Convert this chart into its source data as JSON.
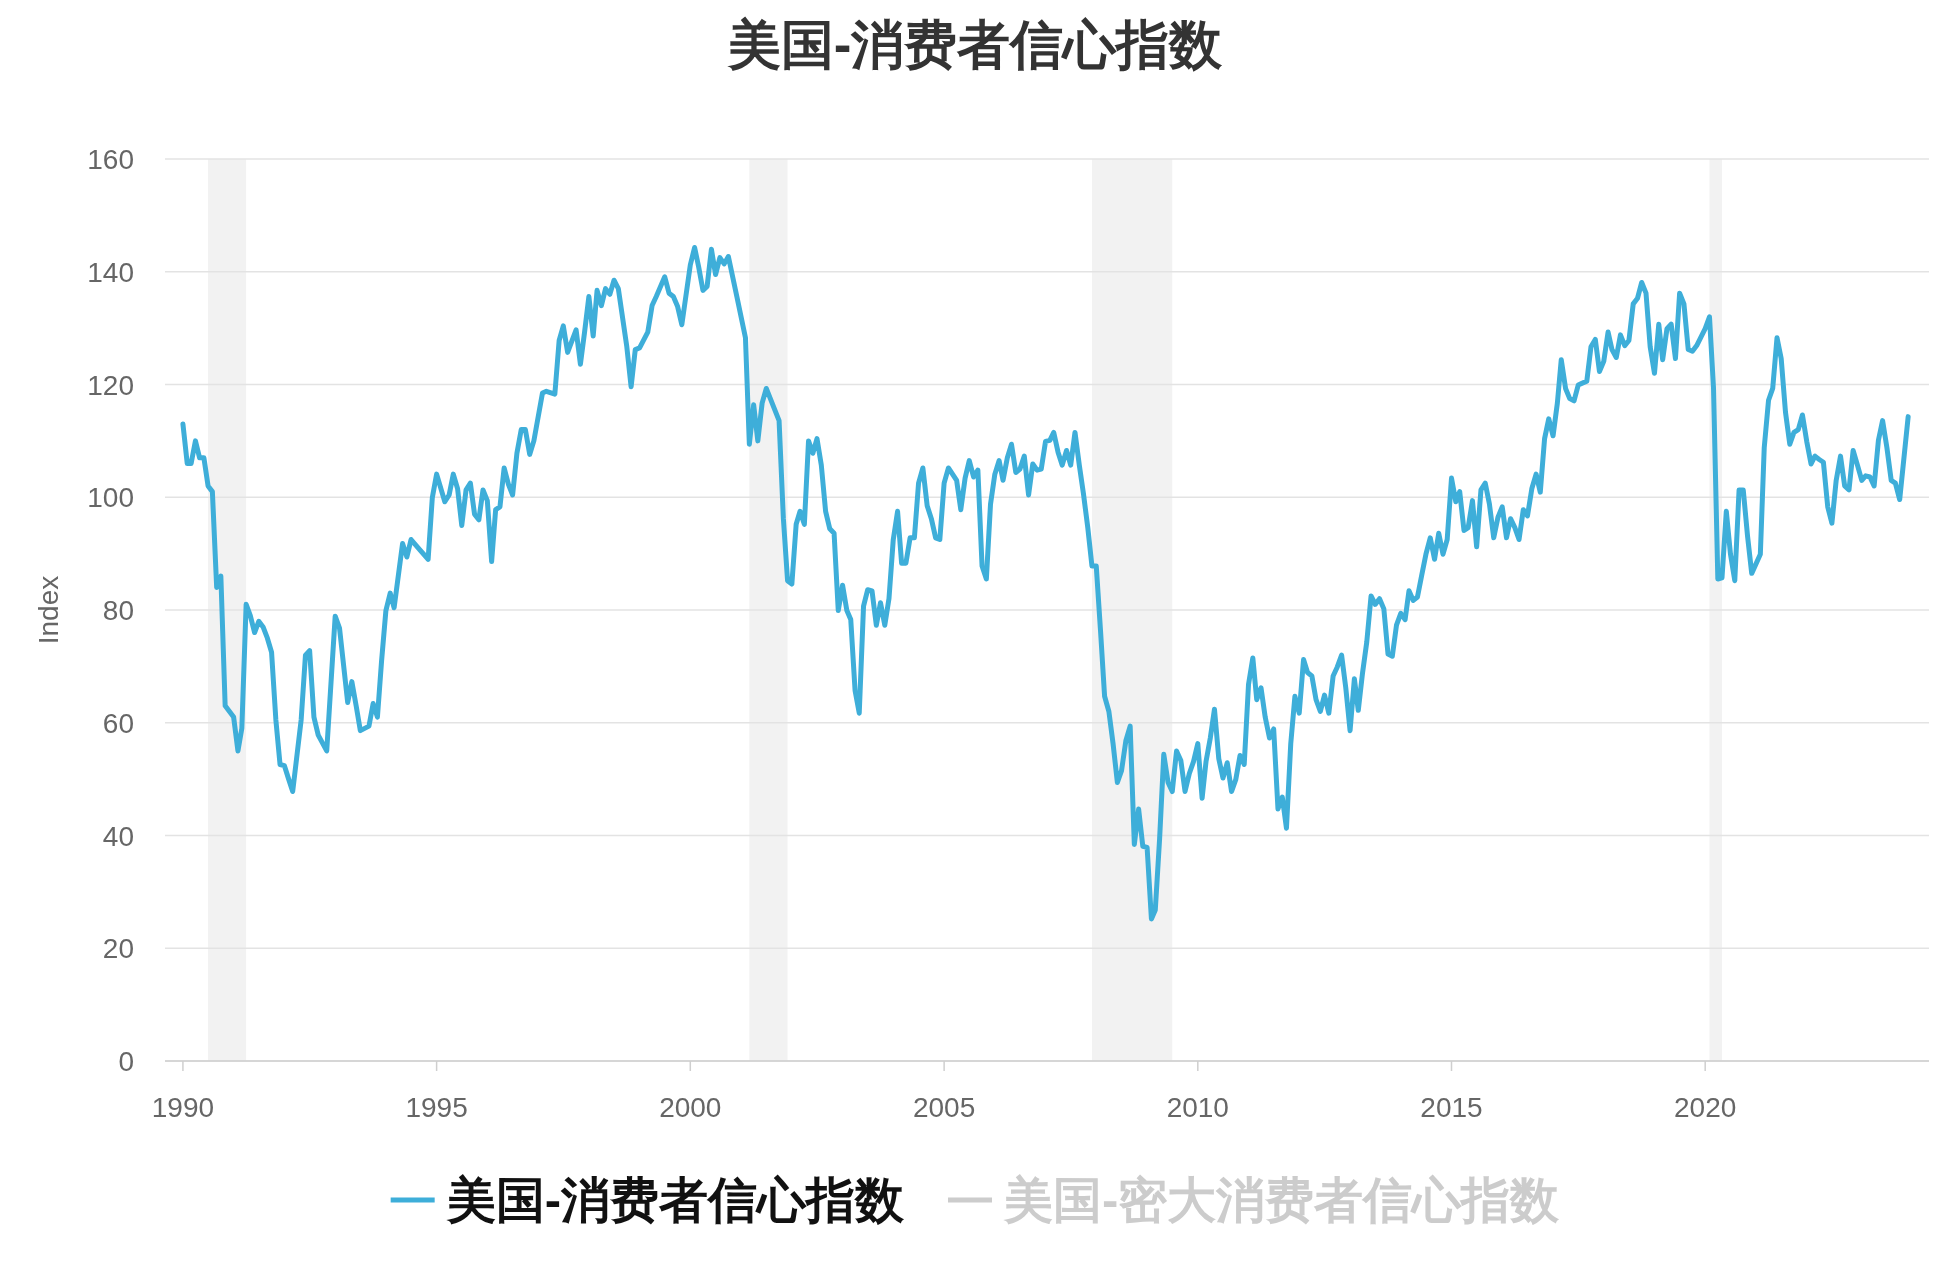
{
  "chart_data": {
    "type": "line",
    "title": "美国-消费者信心指数",
    "ylabel": "Index",
    "x": [
      "1990-01",
      "1990-02",
      "1990-03",
      "1990-04",
      "1990-05",
      "1990-06",
      "1990-07",
      "1990-08",
      "1990-09",
      "1990-10",
      "1990-11",
      "1991-01",
      "1991-02",
      "1991-03",
      "1991-04",
      "1991-05",
      "1991-06",
      "1991-07",
      "1991-08",
      "1991-09",
      "1991-10",
      "1991-11",
      "1991-12",
      "1992-01",
      "1992-02",
      "1992-03",
      "1992-05",
      "1992-06",
      "1992-07",
      "1992-08",
      "1992-09",
      "1992-11",
      "1993-01",
      "1993-02",
      "1993-04",
      "1993-05",
      "1993-06",
      "1993-07",
      "1993-09",
      "1993-10",
      "1993-11",
      "1993-12",
      "1994-01",
      "1994-02",
      "1994-03",
      "1994-04",
      "1994-05",
      "1994-06",
      "1994-07",
      "1994-09",
      "1994-11",
      "1994-12",
      "1995-01",
      "1995-03",
      "1995-04",
      "1995-05",
      "1995-06",
      "1995-07",
      "1995-08",
      "1995-09",
      "1995-10",
      "1995-11",
      "1995-12",
      "1996-01",
      "1996-02",
      "1996-03",
      "1996-04",
      "1996-05",
      "1996-06",
      "1996-07",
      "1996-08",
      "1996-09",
      "1996-10",
      "1996-11",
      "1996-12",
      "1997-02",
      "1997-03",
      "1997-05",
      "1997-06",
      "1997-07",
      "1997-08",
      "1997-10",
      "1997-11",
      "1997-12",
      "1998-01",
      "1998-02",
      "1998-03",
      "1998-04",
      "1998-05",
      "1998-06",
      "1998-07",
      "1998-08",
      "1998-10",
      "1998-11",
      "1998-12",
      "1999-01",
      "1999-03",
      "1999-04",
      "1999-05",
      "1999-07",
      "1999-08",
      "1999-09",
      "1999-10",
      "1999-11",
      "2000-01",
      "2000-02",
      "2000-03",
      "2000-04",
      "2000-05",
      "2000-06",
      "2000-07",
      "2000-08",
      "2000-09",
      "2000-10",
      "2000-12",
      "2001-02",
      "2001-03",
      "2001-04",
      "2001-05",
      "2001-06",
      "2001-07",
      "2001-10",
      "2001-11",
      "2001-12",
      "2002-01",
      "2002-02",
      "2002-03",
      "2002-04",
      "2002-05",
      "2002-06",
      "2002-07",
      "2002-08",
      "2002-09",
      "2002-10",
      "2002-11",
      "2002-12",
      "2003-01",
      "2003-02",
      "2003-03",
      "2003-04",
      "2003-05",
      "2003-06",
      "2003-07",
      "2003-08",
      "2003-09",
      "2003-10",
      "2003-11",
      "2003-12",
      "2004-01",
      "2004-02",
      "2004-03",
      "2004-04",
      "2004-05",
      "2004-06",
      "2004-07",
      "2004-08",
      "2004-09",
      "2004-10",
      "2004-11",
      "2004-12",
      "2005-01",
      "2005-02",
      "2005-04",
      "2005-05",
      "2005-06",
      "2005-07",
      "2005-08",
      "2005-09",
      "2005-10",
      "2005-11",
      "2005-12",
      "2006-01",
      "2006-02",
      "2006-03",
      "2006-04",
      "2006-05",
      "2006-06",
      "2006-07",
      "2006-08",
      "2006-09",
      "2006-10",
      "2006-11",
      "2006-12",
      "2007-01",
      "2007-02",
      "2007-03",
      "2007-04",
      "2007-05",
      "2007-06",
      "2007-07",
      "2007-08",
      "2007-09",
      "2007-10",
      "2007-11",
      "2007-12",
      "2008-01",
      "2008-02",
      "2008-03",
      "2008-04",
      "2008-05",
      "2008-06",
      "2008-07",
      "2008-08",
      "2008-09",
      "2008-10",
      "2008-11",
      "2008-12",
      "2009-01",
      "2009-02",
      "2009-03",
      "2009-04",
      "2009-05",
      "2009-06",
      "2009-07",
      "2009-08",
      "2009-09",
      "2009-10",
      "2009-11",
      "2009-12",
      "2010-01",
      "2010-02",
      "2010-03",
      "2010-04",
      "2010-05",
      "2010-06",
      "2010-07",
      "2010-08",
      "2010-09",
      "2010-10",
      "2010-11",
      "2010-12",
      "2011-01",
      "2011-02",
      "2011-03",
      "2011-04",
      "2011-05",
      "2011-06",
      "2011-07",
      "2011-08",
      "2011-09",
      "2011-10",
      "2011-11",
      "2011-12",
      "2012-01",
      "2012-02",
      "2012-03",
      "2012-04",
      "2012-05",
      "2012-06",
      "2012-07",
      "2012-08",
      "2012-09",
      "2012-10",
      "2012-11",
      "2012-12",
      "2013-01",
      "2013-02",
      "2013-03",
      "2013-04",
      "2013-05",
      "2013-06",
      "2013-07",
      "2013-08",
      "2013-09",
      "2013-10",
      "2013-11",
      "2013-12",
      "2014-01",
      "2014-02",
      "2014-03",
      "2014-04",
      "2014-05",
      "2014-06",
      "2014-07",
      "2014-08",
      "2014-09",
      "2014-10",
      "2014-11",
      "2014-12",
      "2015-01",
      "2015-02",
      "2015-03",
      "2015-04",
      "2015-05",
      "2015-06",
      "2015-07",
      "2015-08",
      "2015-09",
      "2015-10",
      "2015-11",
      "2015-12",
      "2016-01",
      "2016-02",
      "2016-03",
      "2016-04",
      "2016-05",
      "2016-06",
      "2016-07",
      "2016-08",
      "2016-09",
      "2016-10",
      "2016-11",
      "2016-12",
      "2017-01",
      "2017-02",
      "2017-03",
      "2017-04",
      "2017-05",
      "2017-06",
      "2017-07",
      "2017-09",
      "2017-10",
      "2017-11",
      "2017-12",
      "2018-01",
      "2018-02",
      "2018-03",
      "2018-04",
      "2018-05",
      "2018-06",
      "2018-07",
      "2018-08",
      "2018-09",
      "2018-10",
      "2018-11",
      "2018-12",
      "2019-01",
      "2019-02",
      "2019-03",
      "2019-04",
      "2019-05",
      "2019-06",
      "2019-07",
      "2019-08",
      "2019-09",
      "2019-10",
      "2019-11",
      "2020-01",
      "2020-02",
      "2020-03",
      "2020-04",
      "2020-05",
      "2020-06",
      "2020-07",
      "2020-08",
      "2020-09",
      "2020-10",
      "2020-11",
      "2020-12",
      "2021-02",
      "2021-03",
      "2021-04",
      "2021-05",
      "2021-06",
      "2021-07",
      "2021-08",
      "2021-09",
      "2021-10",
      "2021-11",
      "2021-12",
      "2022-01",
      "2022-02",
      "2022-03",
      "2022-04",
      "2022-05",
      "2022-06",
      "2022-07",
      "2022-08",
      "2022-09",
      "2022-10",
      "2022-11",
      "2022-12",
      "2023-01",
      "2023-02",
      "2023-03",
      "2023-04",
      "2023-05",
      "2023-06",
      "2023-07",
      "2023-08",
      "2023-09",
      "2023-10",
      "2023-11",
      "2024-01"
    ],
    "series": [
      {
        "name": "美国-消费者信心指数",
        "color": "#3eaed9",
        "values": [
          113,
          106,
          106,
          110,
          107,
          107,
          102,
          101,
          84,
          86,
          63,
          61,
          55,
          59,
          81,
          79,
          76,
          78,
          77,
          75,
          72.5,
          60.5,
          52.6,
          52.4,
          50,
          47.8,
          60.5,
          72,
          72.8,
          61,
          57.8,
          55,
          78.9,
          76.8,
          63.6,
          67.3,
          63,
          58.6,
          59.4,
          63.4,
          61,
          71,
          79.9,
          83,
          80.4,
          86.2,
          91.8,
          89.4,
          92.5,
          90.7,
          89,
          99.9,
          104.1,
          99.2,
          100.4,
          104.1,
          101.5,
          95,
          101.3,
          102.5,
          97,
          96,
          101.3,
          99.4,
          88.6,
          97.8,
          98.3,
          105.2,
          102.3,
          100.4,
          107.8,
          112,
          112,
          107.6,
          110,
          118.5,
          118.8,
          118.3,
          127.8,
          130.4,
          125.7,
          129.7,
          123.6,
          129.3,
          135.6,
          128.6,
          136.7,
          134,
          137,
          136,
          138.5,
          137,
          126.7,
          119.6,
          126.2,
          126.5,
          129.3,
          134,
          135.6,
          139.1,
          136.2,
          135.6,
          133.9,
          130.6,
          141.2,
          144.3,
          140.9,
          136.7,
          137.4,
          144,
          139.5,
          142.5,
          141.4,
          142.7,
          135.6,
          128.3,
          109.4,
          116.4,
          110,
          116.7,
          119.3,
          113.6,
          96.2,
          85.2,
          84.6,
          95.2,
          97.5,
          95.2,
          110,
          107.8,
          110.4,
          105.7,
          97.5,
          94.4,
          93.6,
          79.9,
          84.4,
          79.9,
          78.3,
          65.7,
          61.7,
          80.7,
          83.6,
          83.4,
          77.3,
          81.3,
          77.3,
          82,
          92.5,
          97.5,
          88.3,
          88.3,
          92.8,
          92.8,
          102.5,
          105.2,
          98.5,
          96.2,
          92.8,
          92.5,
          102.5,
          105.2,
          103,
          97.8,
          103.4,
          106.5,
          103.6,
          104.8,
          87.8,
          85.5,
          98.8,
          104.1,
          106.5,
          103,
          107,
          109.4,
          104.4,
          105,
          107.3,
          100.4,
          105.9,
          104.8,
          105,
          109.9,
          110.1,
          111.5,
          108,
          105.7,
          108.3,
          105.7,
          111.5,
          105.7,
          100.6,
          94.6,
          87.8,
          87.8,
          76.2,
          64.7,
          62,
          56.3,
          49.4,
          51.5,
          56.8,
          59.4,
          38.4,
          44.7,
          38.1,
          37.9,
          25.2,
          26.8,
          39.4,
          54.4,
          49.4,
          47.8,
          55,
          53.3,
          47.8,
          51,
          53.1,
          56.3,
          46.6,
          53.1,
          57.3,
          62.4,
          53.6,
          50.2,
          52.9,
          47.8,
          49.9,
          54.2,
          52.6,
          66.8,
          71.5,
          64.1,
          66.2,
          61,
          57.3,
          58.9,
          44.7,
          46.8,
          41.3,
          56.3,
          64.7,
          61.7,
          71.2,
          68.9,
          68.3,
          64.1,
          62,
          64.9,
          61.7,
          68.3,
          69.9,
          72,
          66.2,
          58.6,
          67.8,
          62.2,
          68.9,
          74.3,
          82.5,
          81,
          82,
          80.2,
          72.2,
          71.8,
          77.3,
          79.4,
          78.3,
          83.4,
          81.7,
          82.3,
          86.2,
          89.9,
          92.8,
          89,
          93.6,
          89.9,
          92.5,
          103.4,
          99.2,
          101,
          94.1,
          94.6,
          99.4,
          91.2,
          101.3,
          102.5,
          98.8,
          92.8,
          96.4,
          98.3,
          92.8,
          96.2,
          94.6,
          92.5,
          97.8,
          96.7,
          101.5,
          104.1,
          100.9,
          110.4,
          113.9,
          110.9,
          116.7,
          124.4,
          119.3,
          117.5,
          117.1,
          119.9,
          120.6,
          126.7,
          128,
          122.3,
          124.1,
          129.3,
          126.2,
          124.8,
          128.8,
          126.9,
          127.8,
          134.3,
          135.3,
          138.1,
          136.2,
          126.7,
          122,
          130.7,
          124.4,
          129.9,
          130.7,
          124.6,
          136.2,
          134.3,
          126.2,
          125.9,
          126.9,
          129.9,
          132,
          119.3,
          85.5,
          85.7,
          97.5,
          89.9,
          85.2,
          101.3,
          101.3,
          93.1,
          86.5,
          89.9,
          108.8,
          117.2,
          119.3,
          128.3,
          124.6,
          115.1,
          109.4,
          111.5,
          112,
          114.6,
          109.9,
          105.9,
          107.3,
          106.7,
          106.2,
          98.3,
          95.4,
          103,
          107.3,
          102,
          101.3,
          108.3,
          105.7,
          103,
          103.8,
          103.6,
          102,
          110.1,
          113.6,
          108.8,
          103,
          102.5,
          99.6,
          114.3
        ]
      },
      {
        "name": "美国-密大消费者信心指数",
        "color": "#cccccc",
        "values": [
          null,
          null,
          null,
          null,
          null,
          null,
          null,
          null,
          null,
          null,
          null,
          null,
          null,
          null,
          null,
          null,
          null,
          null,
          null,
          null,
          null,
          null,
          null,
          null,
          null,
          null,
          null,
          null,
          null,
          null,
          null,
          null,
          null,
          null,
          null,
          null,
          null,
          null,
          null,
          null,
          null,
          null,
          null,
          null,
          null,
          null,
          null,
          null,
          null,
          null,
          null,
          null,
          null,
          null,
          null,
          null,
          null,
          null,
          null,
          null,
          null,
          null,
          null,
          null,
          null,
          null,
          null,
          null,
          null,
          null,
          null,
          null,
          null,
          null,
          null,
          null,
          null,
          null,
          null,
          null,
          null,
          null,
          null,
          null,
          null,
          null,
          null,
          null,
          null,
          null,
          null,
          null,
          null,
          null,
          null,
          null,
          null,
          null,
          null,
          null,
          null,
          null,
          null,
          null,
          null,
          null,
          null,
          null,
          null,
          null,
          null,
          null,
          null,
          null,
          null,
          null,
          null,
          null,
          null,
          null,
          null,
          null,
          null,
          null,
          null,
          null,
          null,
          null,
          null,
          null,
          null,
          null,
          null,
          null,
          null,
          null,
          null,
          null,
          null,
          null,
          null,
          null,
          null,
          null,
          null,
          null,
          null,
          null,
          null,
          null,
          null,
          null,
          null,
          null,
          null,
          null,
          null,
          null,
          null,
          null,
          null,
          null,
          null,
          null,
          null,
          null,
          null,
          null,
          null,
          null,
          null,
          null,
          null,
          null,
          null,
          null,
          null,
          null,
          null,
          null,
          null,
          null,
          null,
          null,
          null,
          null,
          null,
          null,
          null,
          null,
          null,
          null,
          null,
          null,
          null,
          null,
          null,
          null,
          null,
          null,
          null,
          null,
          null,
          null,
          null,
          null,
          null,
          null,
          null,
          null,
          null,
          null,
          null,
          null,
          null,
          null,
          null,
          null,
          null,
          null,
          null,
          null,
          null,
          null,
          null,
          null,
          null,
          null,
          null,
          null,
          null,
          null,
          null,
          null,
          null,
          null,
          null,
          null,
          null,
          null,
          null,
          null,
          null,
          null,
          null,
          null,
          null,
          null,
          null,
          null,
          null,
          null,
          null,
          null,
          null,
          null,
          null,
          null,
          null,
          null,
          null,
          null,
          null,
          null,
          null,
          null,
          null,
          null,
          null,
          null,
          null,
          null,
          null,
          null,
          null,
          null,
          null,
          null,
          null,
          null,
          null,
          null,
          null,
          null,
          null,
          null,
          null,
          null,
          null,
          null,
          null,
          null,
          null,
          null,
          null,
          null,
          null,
          null,
          null,
          null,
          null,
          null,
          null,
          null,
          null,
          null,
          null,
          null,
          null,
          null,
          null,
          null,
          null,
          null,
          null,
          null,
          null,
          null,
          null,
          null,
          null,
          null,
          null,
          null,
          null,
          null,
          null,
          null,
          null,
          null,
          null,
          null,
          null,
          null,
          null,
          null,
          null,
          null,
          null,
          null,
          null,
          null,
          null,
          null,
          null,
          null,
          null,
          null,
          null,
          null,
          null,
          null,
          null,
          null,
          null,
          null,
          null,
          null,
          null,
          null,
          null,
          null,
          null,
          null,
          null,
          null,
          null,
          null,
          null,
          null,
          null,
          null,
          null,
          null,
          null,
          null,
          null,
          null,
          null,
          null,
          null,
          null,
          null,
          null
        ]
      }
    ],
    "xlim": [
      "1989-08-25",
      "2024-05-30"
    ],
    "xticks": [
      "1990",
      "1995",
      "2000",
      "2005",
      "2010",
      "2015",
      "2020"
    ],
    "ylim": [
      0,
      160
    ],
    "yticks": [
      0,
      20,
      40,
      60,
      80,
      100,
      120,
      140,
      160
    ],
    "grid": "y",
    "legend": "bottom",
    "marker": "none",
    "line_style": "solid",
    "bands": [
      {
        "axis": "x",
        "from": "1990-07",
        "to": "1991-04",
        "color": "#f2f2f2"
      },
      {
        "axis": "x",
        "from": "2001-03",
        "to": "2001-12",
        "color": "#f2f2f2"
      },
      {
        "axis": "x",
        "from": "2007-12",
        "to": "2009-07",
        "color": "#f2f2f2"
      },
      {
        "axis": "x",
        "from": "2020-02",
        "to": "2020-05",
        "color": "#f2f2f2"
      }
    ]
  }
}
